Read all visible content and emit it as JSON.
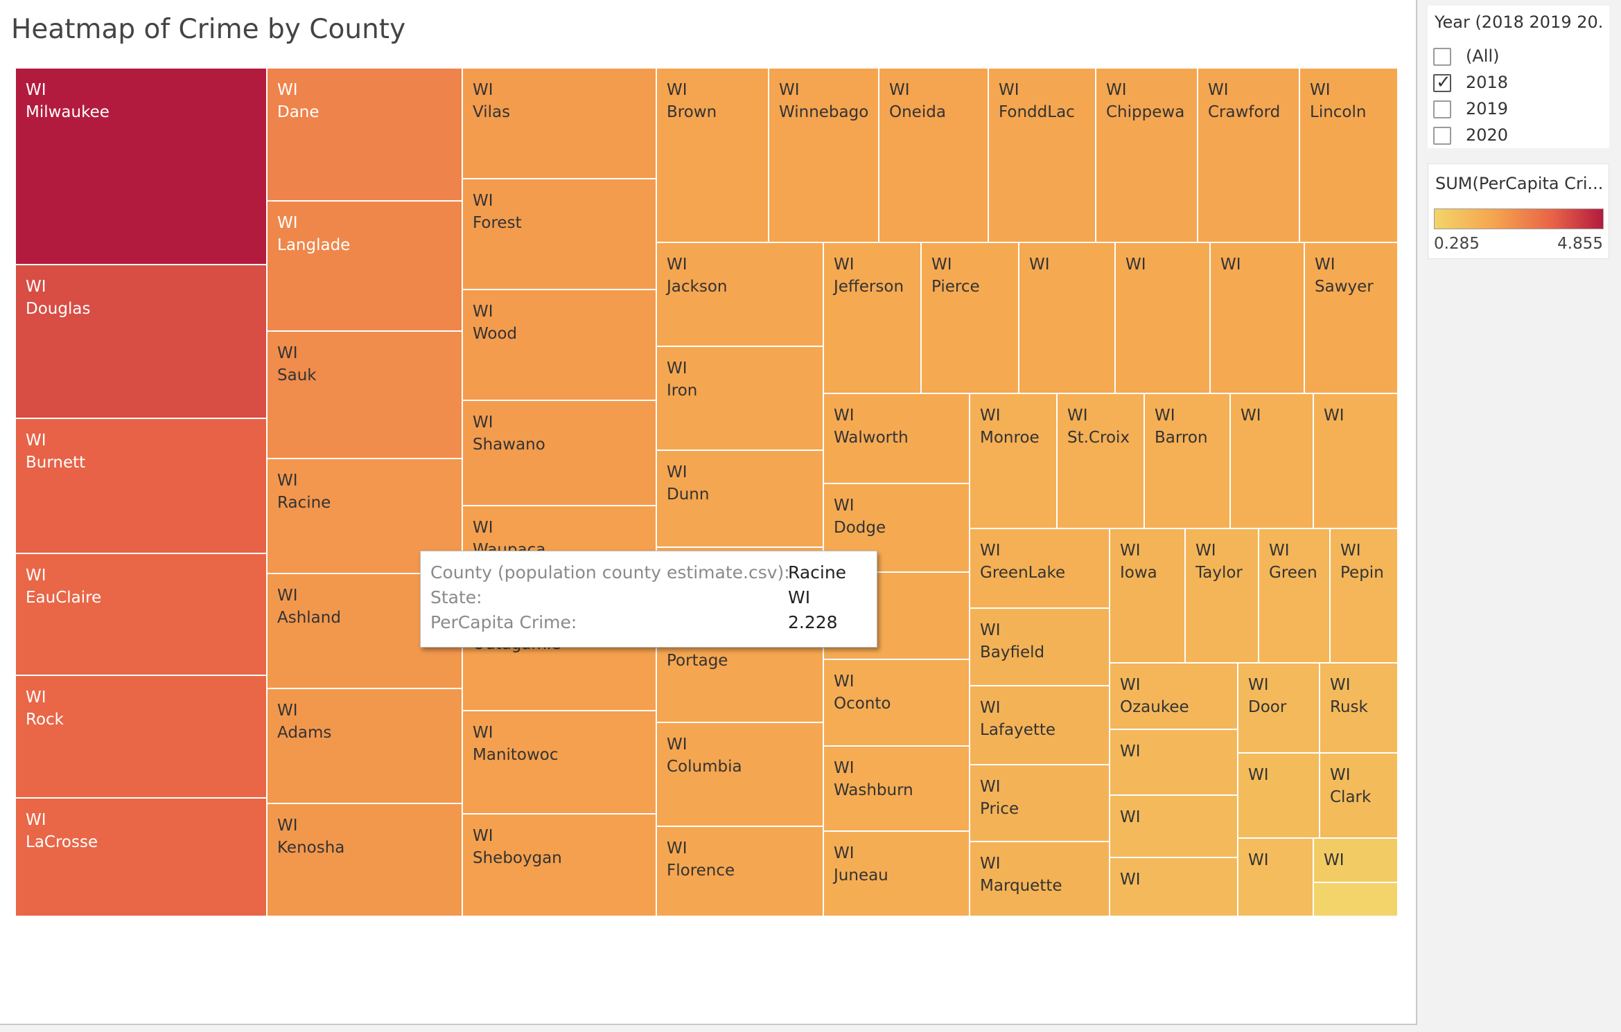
{
  "title": "Heatmap of Crime by County",
  "filter": {
    "title": "Year (2018 2019 20...",
    "options": [
      {
        "label": "(All)",
        "checked": false
      },
      {
        "label": "2018",
        "checked": true
      },
      {
        "label": "2019",
        "checked": false
      },
      {
        "label": "2020",
        "checked": false
      }
    ]
  },
  "legend": {
    "title": "SUM(PerCapita Cri...",
    "min_label": "0.285",
    "max_label": "4.855",
    "color_low": "#f3d46a",
    "color_high": "#b31b3e"
  },
  "tooltip": {
    "rows": [
      {
        "key": "County (population county estimate.csv):",
        "value": "Racine"
      },
      {
        "key": "State:",
        "value": "WI"
      },
      {
        "key": "PerCapita Crime:",
        "value": "2.228"
      }
    ]
  },
  "chart_data": {
    "type": "treemap",
    "title": "Heatmap of Crime by County",
    "color_scale": {
      "min": 0.285,
      "max": 4.855
    },
    "counties": [
      {
        "state": "WI",
        "county": "Milwaukee",
        "value": 4.855
      },
      {
        "state": "WI",
        "county": "Douglas",
        "value": 3.9
      },
      {
        "state": "WI",
        "county": "Burnett",
        "value": 3.5
      },
      {
        "state": "WI",
        "county": "EauClaire",
        "value": 3.4
      },
      {
        "state": "WI",
        "county": "Rock",
        "value": 3.4
      },
      {
        "state": "WI",
        "county": "LaCrosse",
        "value": 3.4
      },
      {
        "state": "WI",
        "county": "Dane",
        "value": 2.7
      },
      {
        "state": "WI",
        "county": "Langlade",
        "value": 2.6
      },
      {
        "state": "WI",
        "county": "Sauk",
        "value": 2.5
      },
      {
        "state": "WI",
        "county": "Racine",
        "value": 2.228
      },
      {
        "state": "WI",
        "county": "Ashland",
        "value": 2.2
      },
      {
        "state": "WI",
        "county": "Adams",
        "value": 2.2
      },
      {
        "state": "WI",
        "county": "Kenosha",
        "value": 2.2
      },
      {
        "state": "WI",
        "county": "Vilas",
        "value": 2.1
      },
      {
        "state": "WI",
        "county": "Forest",
        "value": 2.1
      },
      {
        "state": "WI",
        "county": "Wood",
        "value": 2.1
      },
      {
        "state": "WI",
        "county": "Shawano",
        "value": 2.1
      },
      {
        "state": "WI",
        "county": "Waupaca",
        "value": 2.0
      },
      {
        "state": "WI",
        "county": "Outagamie",
        "value": 2.0
      },
      {
        "state": "WI",
        "county": "Manitowoc",
        "value": 2.0
      },
      {
        "state": "WI",
        "county": "Sheboygan",
        "value": 2.0
      },
      {
        "state": "WI",
        "county": "Brown",
        "value": 1.9
      },
      {
        "state": "WI",
        "county": "Winnebago",
        "value": 1.9
      },
      {
        "state": "WI",
        "county": "Oneida",
        "value": 1.9
      },
      {
        "state": "WI",
        "county": "FonddLac",
        "value": 1.85
      },
      {
        "state": "WI",
        "county": "Chippewa",
        "value": 1.85
      },
      {
        "state": "WI",
        "county": "Crawford",
        "value": 1.85
      },
      {
        "state": "WI",
        "county": "Lincoln",
        "value": 1.8
      },
      {
        "state": "WI",
        "county": "Jackson",
        "value": 1.85
      },
      {
        "state": "WI",
        "county": "Iron",
        "value": 1.85
      },
      {
        "state": "WI",
        "county": "Dunn",
        "value": 1.85
      },
      {
        "state": "WI",
        "county": "",
        "value": 1.85
      },
      {
        "state": "WI",
        "county": "Portage",
        "value": 1.85
      },
      {
        "state": "WI",
        "county": "Columbia",
        "value": 1.85
      },
      {
        "state": "WI",
        "county": "Florence",
        "value": 1.85
      },
      {
        "state": "WI",
        "county": "Jefferson",
        "value": 1.75
      },
      {
        "state": "WI",
        "county": "Pierce",
        "value": 1.75
      },
      {
        "state": "WI",
        "county": "",
        "value": 1.75
      },
      {
        "state": "WI",
        "county": "",
        "value": 1.75
      },
      {
        "state": "WI",
        "county": "",
        "value": 1.75
      },
      {
        "state": "WI",
        "county": "Sawyer",
        "value": 1.7
      },
      {
        "state": "WI",
        "county": "Walworth",
        "value": 1.7
      },
      {
        "state": "WI",
        "county": "Dodge",
        "value": 1.7
      },
      {
        "state": "WI",
        "county": "",
        "value": 1.7
      },
      {
        "state": "WI",
        "county": "Oconto",
        "value": 1.65
      },
      {
        "state": "WI",
        "county": "Washburn",
        "value": 1.65
      },
      {
        "state": "WI",
        "county": "Juneau",
        "value": 1.6
      },
      {
        "state": "WI",
        "county": "Monroe",
        "value": 1.55
      },
      {
        "state": "WI",
        "county": "St.Croix",
        "value": 1.55
      },
      {
        "state": "WI",
        "county": "Barron",
        "value": 1.55
      },
      {
        "state": "WI",
        "county": "",
        "value": 1.5
      },
      {
        "state": "WI",
        "county": "",
        "value": 1.5
      },
      {
        "state": "WI",
        "county": "GreenLake",
        "value": 1.5
      },
      {
        "state": "WI",
        "county": "Bayfield",
        "value": 1.45
      },
      {
        "state": "WI",
        "county": "Lafayette",
        "value": 1.45
      },
      {
        "state": "WI",
        "county": "Price",
        "value": 1.45
      },
      {
        "state": "WI",
        "county": "Marquette",
        "value": 1.45
      },
      {
        "state": "WI",
        "county": "Iowa",
        "value": 1.4
      },
      {
        "state": "WI",
        "county": "Taylor",
        "value": 1.35
      },
      {
        "state": "WI",
        "county": "Green",
        "value": 1.3
      },
      {
        "state": "WI",
        "county": "Pepin",
        "value": 1.3
      },
      {
        "state": "WI",
        "county": "Ozaukee",
        "value": 1.3
      },
      {
        "state": "WI",
        "county": "",
        "value": 1.25
      },
      {
        "state": "WI",
        "county": "",
        "value": 1.2
      },
      {
        "state": "WI",
        "county": "",
        "value": 1.2
      },
      {
        "state": "WI",
        "county": "Door",
        "value": 1.2
      },
      {
        "state": "WI",
        "county": "Rusk",
        "value": 1.2
      },
      {
        "state": "WI",
        "county": "",
        "value": 1.15
      },
      {
        "state": "WI",
        "county": "Clark",
        "value": 1.15
      },
      {
        "state": "WI",
        "county": "",
        "value": 1.1
      },
      {
        "state": "WI",
        "county": "",
        "value": 0.6
      },
      {
        "state": "",
        "county": "",
        "value": 0.285
      }
    ]
  }
}
